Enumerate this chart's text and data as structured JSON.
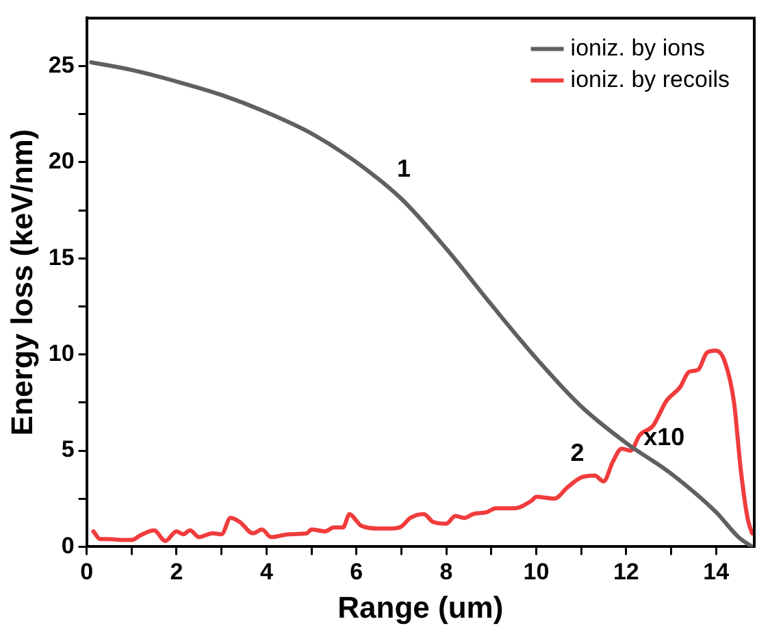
{
  "chart_data": {
    "type": "line",
    "xlabel": "Range (um)",
    "ylabel": "Energy loss (keV/nm)",
    "xlim": [
      0,
      14.85
    ],
    "ylim": [
      0,
      27.5
    ],
    "xticks": [
      0,
      {
        "value": 1,
        "label": null
      },
      2,
      {
        "value": 3,
        "label": null
      },
      4,
      {
        "value": 5,
        "label": null
      },
      6,
      {
        "value": 7,
        "label": null
      },
      8,
      {
        "value": 9,
        "label": null
      },
      10,
      {
        "value": 11,
        "label": null
      },
      12,
      {
        "value": 13,
        "label": null
      },
      14
    ],
    "yticks": [
      0,
      {
        "value": 2.5,
        "label": null
      },
      5,
      {
        "value": 7.5,
        "label": null
      },
      10,
      {
        "value": 12.5,
        "label": null
      },
      15,
      {
        "value": 17.5,
        "label": null
      },
      20,
      {
        "value": 22.5,
        "label": null
      },
      25
    ],
    "grid": false,
    "legend": "top right",
    "marker": "none",
    "line_style": "solid",
    "series": [
      {
        "name": "ioniz. by ions",
        "color": "#606060",
        "x": [
          0.1,
          1,
          2,
          3,
          4,
          5,
          6,
          7,
          8,
          9,
          10,
          11,
          12,
          13,
          14,
          14.5,
          14.8
        ],
        "values": [
          25.2,
          24.8,
          24.2,
          23.5,
          22.6,
          21.5,
          20.0,
          18.1,
          15.5,
          12.6,
          9.8,
          7.3,
          5.4,
          3.8,
          1.8,
          0.5,
          0
        ]
      },
      {
        "name": "ioniz. by recoils",
        "color": "#f03c3c",
        "x": [
          0.15,
          0.3,
          0.5,
          0.8,
          1,
          1.2,
          1.5,
          1.75,
          2,
          2.15,
          2.3,
          2.5,
          2.8,
          3,
          3.2,
          3.4,
          3.7,
          3.9,
          4.1,
          4.5,
          4.9,
          5,
          5.3,
          5.5,
          5.7,
          5.85,
          6,
          6.1,
          6.5,
          6.8,
          7,
          7.2,
          7.5,
          7.7,
          8,
          8.2,
          8.4,
          8.6,
          8.9,
          9.1,
          9.5,
          9.9,
          10,
          10.4,
          10.7,
          11,
          11.3,
          11.5,
          11.7,
          11.9,
          12.1,
          12.3,
          12.6,
          12.9,
          13.2,
          13.4,
          13.6,
          13.8,
          14,
          14.2,
          14.4,
          14.55,
          14.7,
          14.8
        ],
        "values": [
          0.8,
          0.4,
          0.4,
          0.35,
          0.35,
          0.6,
          0.85,
          0.3,
          0.8,
          0.65,
          0.85,
          0.5,
          0.7,
          0.65,
          1.5,
          1.3,
          0.7,
          0.9,
          0.5,
          0.65,
          0.7,
          0.9,
          0.8,
          1.0,
          1.0,
          1.7,
          1.35,
          1.1,
          0.95,
          0.95,
          1.05,
          1.5,
          1.7,
          1.3,
          1.2,
          1.6,
          1.5,
          1.7,
          1.8,
          2.0,
          2.0,
          2.4,
          2.6,
          2.5,
          3.1,
          3.6,
          3.7,
          3.4,
          4.4,
          5.1,
          5.0,
          5.8,
          6.3,
          7.6,
          8.3,
          9.1,
          9.2,
          10.1,
          10.2,
          9.6,
          7.5,
          4.0,
          1.5,
          0.7
        ]
      }
    ],
    "annotations": [
      "1",
      "2",
      "x10"
    ]
  }
}
